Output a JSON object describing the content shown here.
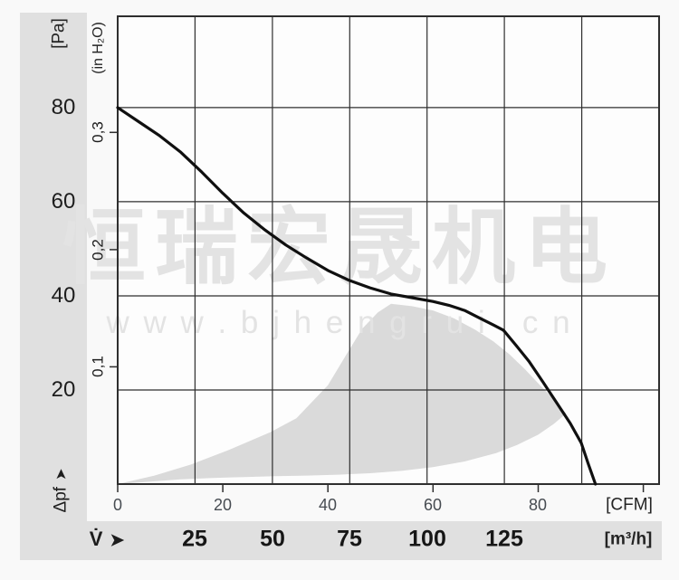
{
  "watermark": {
    "cjk": "恒瑞宏晟机电",
    "url": "w w w . b j h e n g r u i . c n"
  },
  "axes": {
    "pa_unit": "[Pa]",
    "inh2o_unit": "(in H₂O)",
    "cfm_unit": "[CFM]",
    "m3h_unit": "[m³/h]",
    "pressure_symbol": "Δpf",
    "flow_symbol": "V̇",
    "arrow": "➤"
  },
  "colors": {
    "curve": "#101010",
    "operating_region": "#dadada",
    "band": "#e0e0e0",
    "watermark": "#e3e3e3",
    "grid": "#2e2e2e",
    "plot_bg": "#fdfdfd"
  },
  "chart_data": {
    "type": "line",
    "title": "",
    "x_axis": {
      "primary_unit": "[CFM]",
      "secondary_unit": "[m³/h]",
      "cfm_tick_labels": [
        0,
        20,
        40,
        60,
        80
      ],
      "cfm_tick_marks": [
        0,
        20,
        40,
        60,
        80,
        100
      ],
      "m3h_tick_labels": [
        25,
        50,
        75,
        100,
        125
      ],
      "m3h_gridlines": [
        25,
        50,
        75,
        100,
        125,
        150
      ],
      "xlim_m3h": [
        0,
        175
      ],
      "cfm_to_m3h": 1.699
    },
    "y_axis": {
      "primary_unit": "[Pa]",
      "secondary_unit": "(in H₂O)",
      "pa_tick_labels": [
        80,
        60,
        40,
        20
      ],
      "pa_gridlines": [
        20,
        40,
        60,
        80
      ],
      "inh2o_ticks": [
        {
          "label": "0,3",
          "value": 0.3
        },
        {
          "label": "0,2",
          "value": 0.2
        },
        {
          "label": "0,1",
          "value": 0.1
        }
      ],
      "ylim_pa": [
        0,
        99.4
      ],
      "inh2o_to_pa": 249.089
    },
    "curve_cfm_pa": [
      [
        0,
        80
      ],
      [
        4,
        77
      ],
      [
        8,
        74
      ],
      [
        12,
        70.5
      ],
      [
        16,
        66.3
      ],
      [
        20,
        61.8
      ],
      [
        24,
        57.6
      ],
      [
        28,
        54
      ],
      [
        32,
        50.8
      ],
      [
        36,
        48
      ],
      [
        40,
        45.4
      ],
      [
        44,
        43.3
      ],
      [
        48,
        41.7
      ],
      [
        52,
        40.4
      ],
      [
        56,
        39.6
      ],
      [
        60,
        38.8
      ],
      [
        63,
        38
      ],
      [
        66,
        36.9
      ],
      [
        69,
        35.2
      ],
      [
        71.5,
        33.8
      ],
      [
        73.4,
        32.7
      ],
      [
        76,
        29.2
      ],
      [
        78.3,
        26
      ],
      [
        80.9,
        21.7
      ],
      [
        83.5,
        17.3
      ],
      [
        86.1,
        12.9
      ],
      [
        88.2,
        8.7
      ],
      [
        89.5,
        4.4
      ],
      [
        90.9,
        0
      ]
    ],
    "operating_region": {
      "upper_cfm_pa": [
        [
          0,
          0
        ],
        [
          7,
          1.8
        ],
        [
          14,
          4.2
        ],
        [
          21,
          7.2
        ],
        [
          29,
          11
        ],
        [
          34,
          14
        ],
        [
          40,
          21
        ],
        [
          43.5,
          27.5
        ],
        [
          46.5,
          33
        ],
        [
          49.5,
          36.5
        ],
        [
          52,
          38.3
        ],
        [
          56,
          37.8
        ],
        [
          60,
          36.9
        ],
        [
          64,
          35.2
        ],
        [
          68,
          32.8
        ],
        [
          71.5,
          30.3
        ],
        [
          74.5,
          27.6
        ],
        [
          77.5,
          24.4
        ],
        [
          80.5,
          20.8
        ],
        [
          83,
          18
        ],
        [
          85.3,
          15
        ]
      ],
      "lower_cfm_pa": [
        [
          0,
          0
        ],
        [
          6,
          0.5
        ],
        [
          12,
          1.0
        ],
        [
          18,
          1.3
        ],
        [
          24,
          1.5
        ],
        [
          30,
          1.7
        ],
        [
          36,
          1.8
        ],
        [
          42,
          2.0
        ],
        [
          48,
          2.3
        ],
        [
          54,
          2.8
        ],
        [
          60,
          3.6
        ],
        [
          66,
          4.8
        ],
        [
          72,
          6.6
        ],
        [
          76,
          8.3
        ],
        [
          80,
          10.5
        ],
        [
          83,
          12.8
        ],
        [
          85.3,
          15
        ]
      ]
    }
  }
}
